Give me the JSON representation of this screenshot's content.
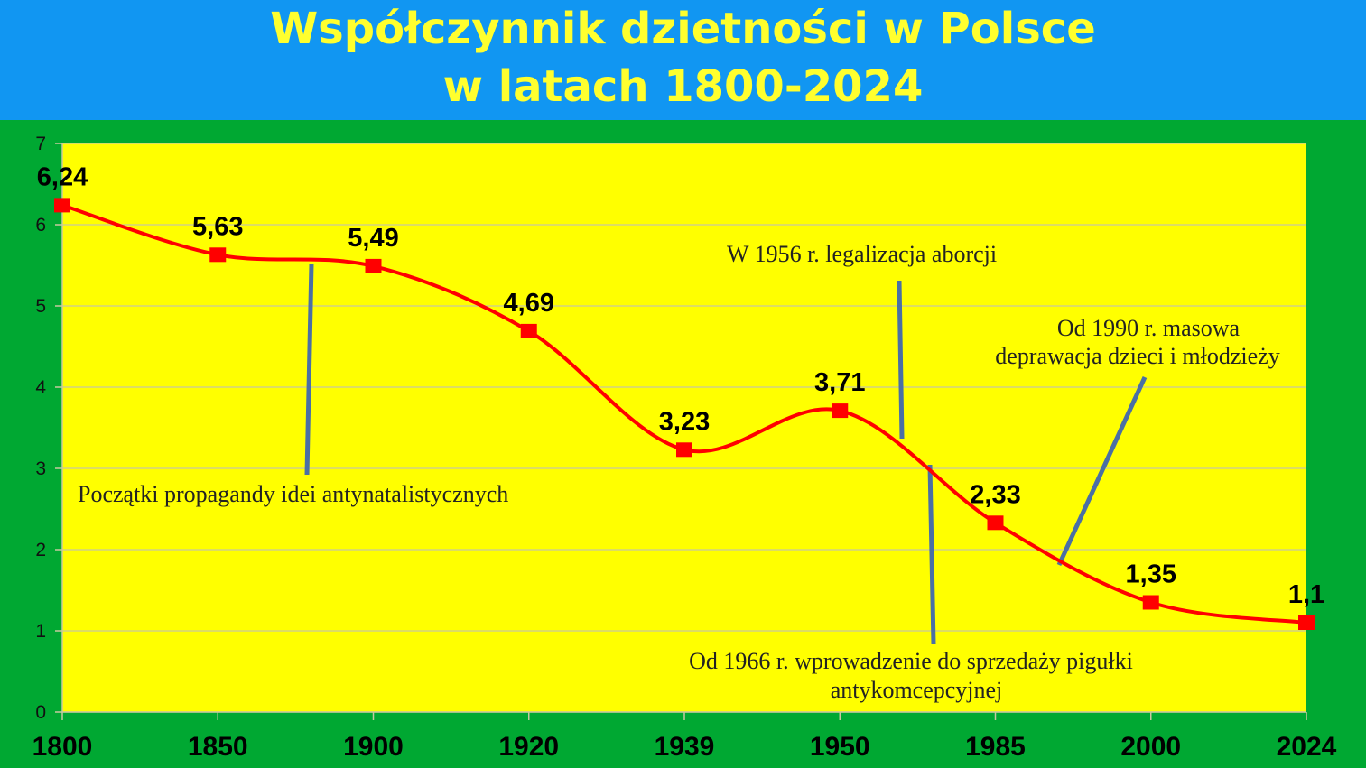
{
  "chart_data": {
    "type": "line",
    "title": "Współczynnik dzietności w Polsce",
    "subtitle": "w latach 1800-2024",
    "xlabel": "",
    "ylabel": "",
    "categories": [
      "1800",
      "1850",
      "1900",
      "1920",
      "1939",
      "1950",
      "1985",
      "2000",
      "2024"
    ],
    "series": [
      {
        "name": "Współczynnik dzietności",
        "values": [
          6.24,
          5.63,
          5.49,
          4.69,
          3.23,
          3.71,
          2.33,
          1.35,
          1.1
        ]
      }
    ],
    "data_labels": [
      "6,24",
      "5,63",
      "5,49",
      "4,69",
      "3,23",
      "3,71",
      "2,33",
      "1,35",
      "1,1"
    ],
    "ylim": [
      0,
      7
    ],
    "yticks": [
      "0",
      "1",
      "2",
      "3",
      "4",
      "5",
      "6",
      "7"
    ],
    "grid": true,
    "annotations": [
      {
        "text": "Początki propagandy idei antynatalistycznych"
      },
      {
        "text": "W 1956 r. legalizacja aborcji"
      },
      {
        "text": "Od 1990 r. masowa",
        "text2": "deprawacja dzieci i młodzieży"
      },
      {
        "text": "Od 1966 r. wprowadzenie do sprzedaży pigułki",
        "text2": "antykomcepcyjnej"
      }
    ],
    "colors": {
      "line": "#ff0000",
      "marker": "#ff0000",
      "plot_bg": "#ffff00",
      "page_bg": "#00a832",
      "header_bg": "#1196f2",
      "title": "#ffff2e",
      "pointer": "#4a6fa5"
    }
  }
}
